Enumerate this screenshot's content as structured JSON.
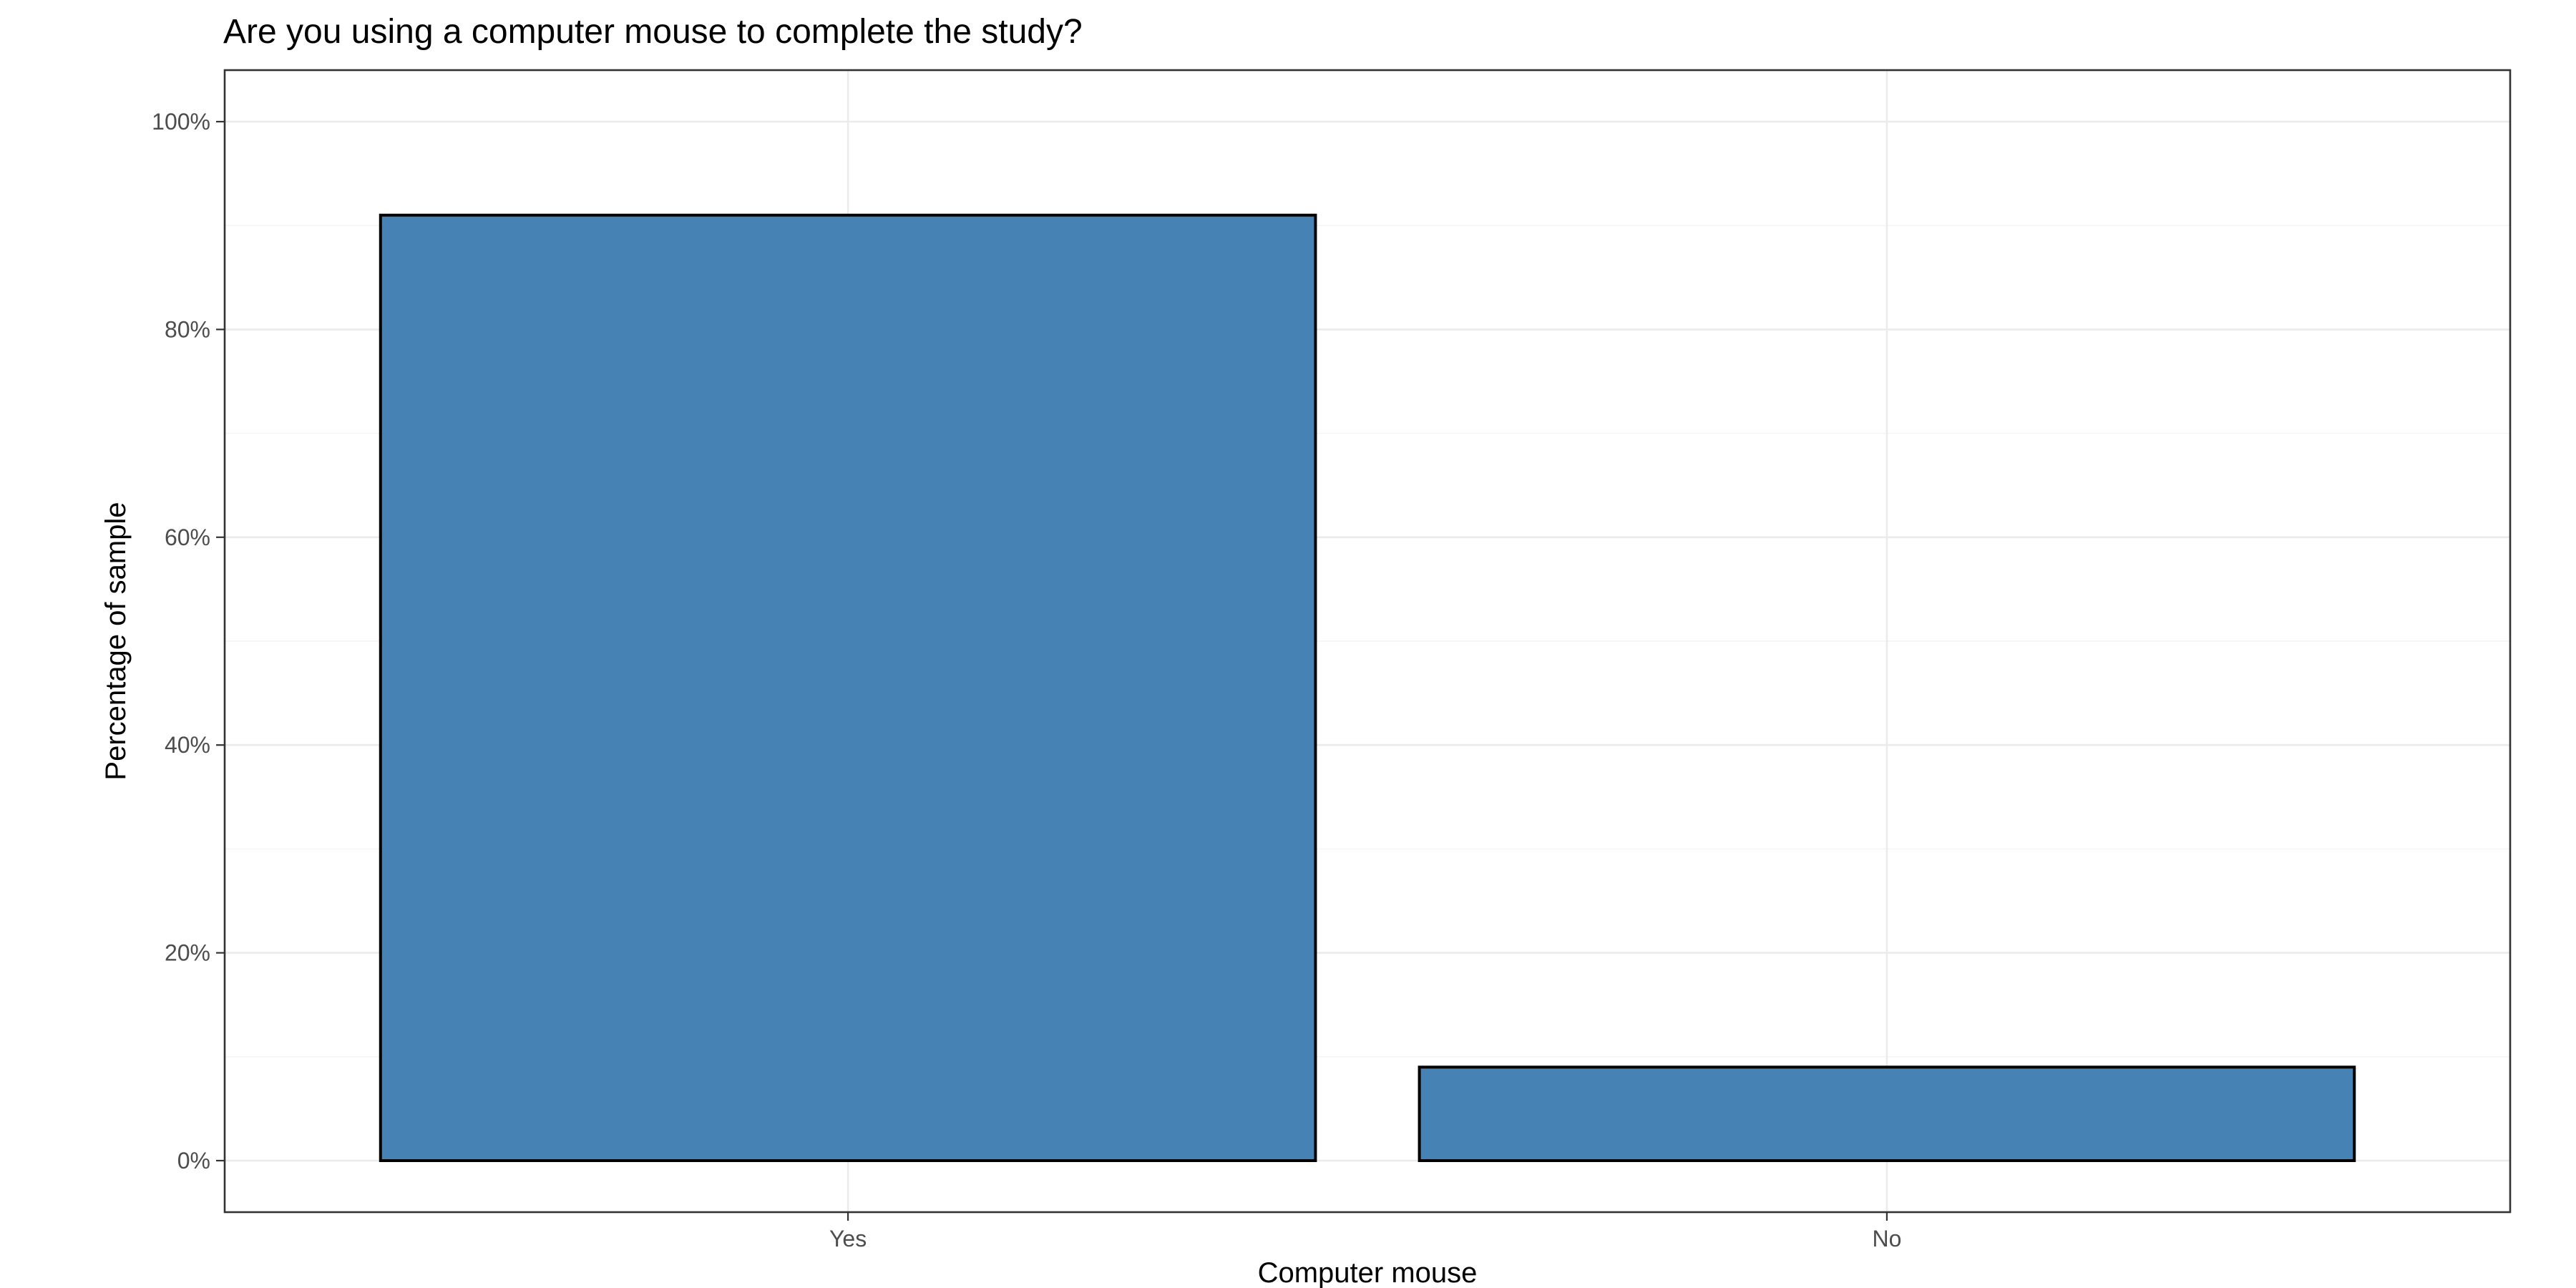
{
  "chart_data": {
    "type": "bar",
    "title": "Are you using a computer mouse to complete the study?",
    "xlabel": "Computer mouse",
    "ylabel": "Percentage of sample",
    "categories": [
      "Yes",
      "No"
    ],
    "values": [
      91,
      9
    ],
    "ylim": [
      0,
      100
    ],
    "yticks": [
      0,
      20,
      40,
      60,
      80,
      100
    ],
    "ytick_labels": [
      "0%",
      "20%",
      "40%",
      "60%",
      "80%",
      "100%"
    ],
    "grid": true,
    "legend": "none",
    "bar_color": "#4682B4",
    "bar_outline_color": "#000000"
  }
}
